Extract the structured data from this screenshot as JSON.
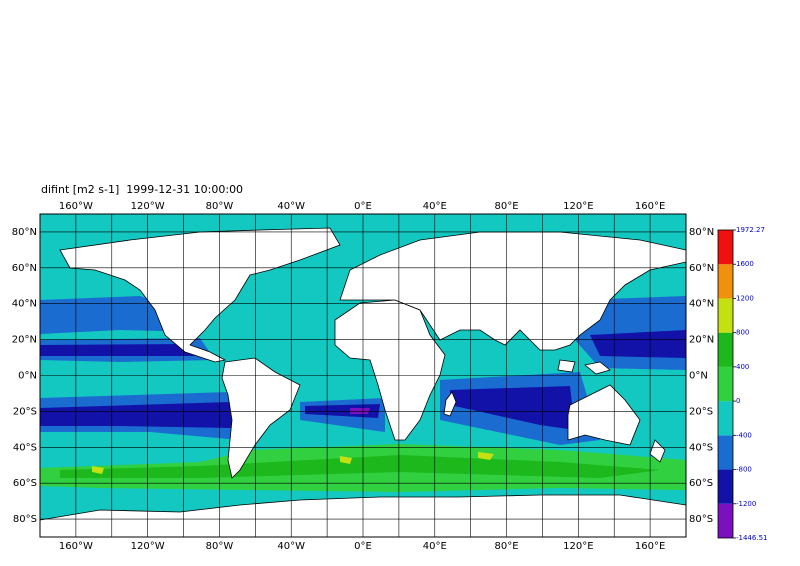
{
  "chart_data": {
    "type": "map",
    "title": "difint [m2 s-1]  1999-12-31 10:00:00",
    "xlim": [
      -180,
      180
    ],
    "ylim": [
      -90,
      90
    ],
    "xticks": [
      {
        "value": -160,
        "label": "160°W"
      },
      {
        "value": -120,
        "label": "120°W"
      },
      {
        "value": -80,
        "label": "80°W"
      },
      {
        "value": -40,
        "label": "40°W"
      },
      {
        "value": 0,
        "label": "0°E"
      },
      {
        "value": 40,
        "label": "40°E"
      },
      {
        "value": 80,
        "label": "80°E"
      },
      {
        "value": 120,
        "label": "120°E"
      },
      {
        "value": 160,
        "label": "160°E"
      }
    ],
    "yticks": [
      {
        "value": 80,
        "label": "80°N"
      },
      {
        "value": 60,
        "label": "60°N"
      },
      {
        "value": 40,
        "label": "40°N"
      },
      {
        "value": 20,
        "label": "20°N"
      },
      {
        "value": 0,
        "label": "0°N"
      },
      {
        "value": -20,
        "label": "20°S"
      },
      {
        "value": -40,
        "label": "40°S"
      },
      {
        "value": -60,
        "label": "60°S"
      },
      {
        "value": -80,
        "label": "80°S"
      }
    ],
    "xgrid": [
      -160,
      -140,
      -120,
      -100,
      -80,
      -60,
      -40,
      -20,
      0,
      20,
      40,
      60,
      80,
      100,
      120,
      140,
      160
    ],
    "grid": true,
    "colorbar": {
      "levels": [
        -1446.51,
        -1200,
        -800,
        -400,
        0,
        400,
        800,
        1200,
        1600,
        1972.27
      ],
      "colors": [
        "#7a10c0",
        "#1212a8",
        "#1a6cd0",
        "#12c8c0",
        "#30d040",
        "#1cb81c",
        "#c4e010",
        "#f0900c",
        "#f01010"
      ]
    }
  }
}
